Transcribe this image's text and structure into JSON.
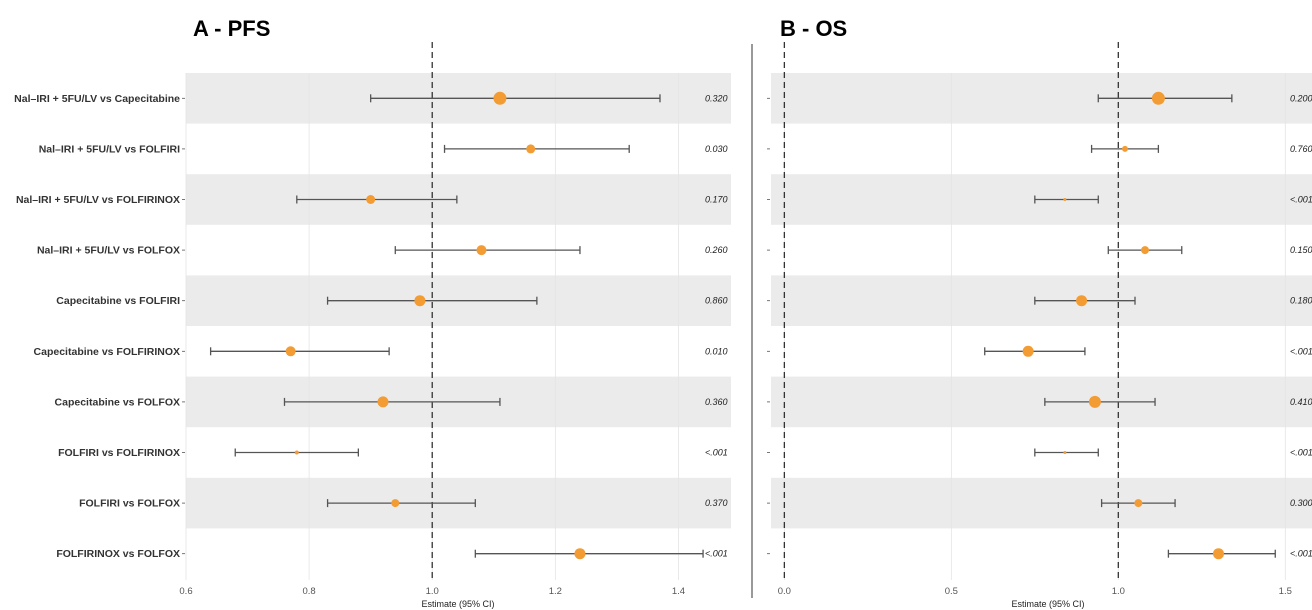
{
  "colors": {
    "point": "#F39C34",
    "band": "#EBEBEB",
    "whisker": "#555555",
    "refline": "#333333",
    "grid": "#E4E4E4"
  },
  "chart_data": [
    {
      "type": "scatter",
      "title": "A - PFS",
      "xlabel": "Estimate (95% CI)",
      "xlim": [
        0.6,
        1.5
      ],
      "xticks": [
        "0.6",
        "0.8",
        "1.0",
        "1.2",
        "1.4"
      ],
      "reference_lines": [
        1.0
      ],
      "grid": true,
      "rows": [
        {
          "label": "Nal–IRI + 5FU/LV vs Capecitabine",
          "estimate": 1.11,
          "lower": 0.9,
          "upper": 1.37,
          "p": "0.320",
          "size": 6.5
        },
        {
          "label": "Nal–IRI + 5FU/LV vs FOLFIRI",
          "estimate": 1.16,
          "lower": 1.02,
          "upper": 1.32,
          "p": "0.030",
          "size": 4.5
        },
        {
          "label": "Nal–IRI + 5FU/LV vs FOLFIRINOX",
          "estimate": 0.9,
          "lower": 0.78,
          "upper": 1.04,
          "p": "0.170",
          "size": 4.5
        },
        {
          "label": "Nal–IRI + 5FU/LV vs FOLFOX",
          "estimate": 1.08,
          "lower": 0.94,
          "upper": 1.24,
          "p": "0.260",
          "size": 5
        },
        {
          "label": "Capecitabine vs FOLFIRI",
          "estimate": 0.98,
          "lower": 0.83,
          "upper": 1.17,
          "p": "0.860",
          "size": 5.5
        },
        {
          "label": "Capecitabine vs FOLFIRINOX",
          "estimate": 0.77,
          "lower": 0.64,
          "upper": 0.93,
          "p": "0.010",
          "size": 5
        },
        {
          "label": "Capecitabine vs FOLFOX",
          "estimate": 0.92,
          "lower": 0.76,
          "upper": 1.11,
          "p": "0.360",
          "size": 5.5
        },
        {
          "label": "FOLFIRI vs FOLFIRINOX",
          "estimate": 0.78,
          "lower": 0.68,
          "upper": 0.88,
          "p": "<.001",
          "size": 2
        },
        {
          "label": "FOLFIRI vs FOLFOX",
          "estimate": 0.94,
          "lower": 0.83,
          "upper": 1.07,
          "p": "0.370",
          "size": 4
        },
        {
          "label": "FOLFIRINOX vs FOLFOX",
          "estimate": 1.24,
          "lower": 1.07,
          "upper": 1.44,
          "p": "<.001",
          "size": 5.5
        }
      ]
    },
    {
      "type": "scatter",
      "title": "B - OS",
      "xlabel": "Estimate (95% CI)",
      "xlim": [
        -0.04,
        1.58
      ],
      "xticks": [
        "0.0",
        "0.5",
        "1.0",
        "1.5"
      ],
      "reference_lines": [
        0.0,
        1.0
      ],
      "grid": true,
      "rows": [
        {
          "estimate": 1.12,
          "lower": 0.94,
          "upper": 1.34,
          "p": "0.200",
          "size": 6.5
        },
        {
          "estimate": 1.02,
          "lower": 0.92,
          "upper": 1.12,
          "p": "0.760",
          "size": 3
        },
        {
          "estimate": 0.84,
          "lower": 0.75,
          "upper": 0.94,
          "p": "<.001",
          "size": 1.5
        },
        {
          "estimate": 1.08,
          "lower": 0.97,
          "upper": 1.19,
          "p": "0.150",
          "size": 4
        },
        {
          "estimate": 0.89,
          "lower": 0.75,
          "upper": 1.05,
          "p": "0.180",
          "size": 5.5
        },
        {
          "estimate": 0.73,
          "lower": 0.6,
          "upper": 0.9,
          "p": "<.001",
          "size": 5.5
        },
        {
          "estimate": 0.93,
          "lower": 0.78,
          "upper": 1.11,
          "p": "0.410",
          "size": 6
        },
        {
          "estimate": 0.84,
          "lower": 0.75,
          "upper": 0.94,
          "p": "<.001",
          "size": 1.5
        },
        {
          "estimate": 1.06,
          "lower": 0.95,
          "upper": 1.17,
          "p": "0.300",
          "size": 4
        },
        {
          "estimate": 1.3,
          "lower": 1.15,
          "upper": 1.47,
          "p": "<.001",
          "size": 5.5
        }
      ]
    }
  ]
}
